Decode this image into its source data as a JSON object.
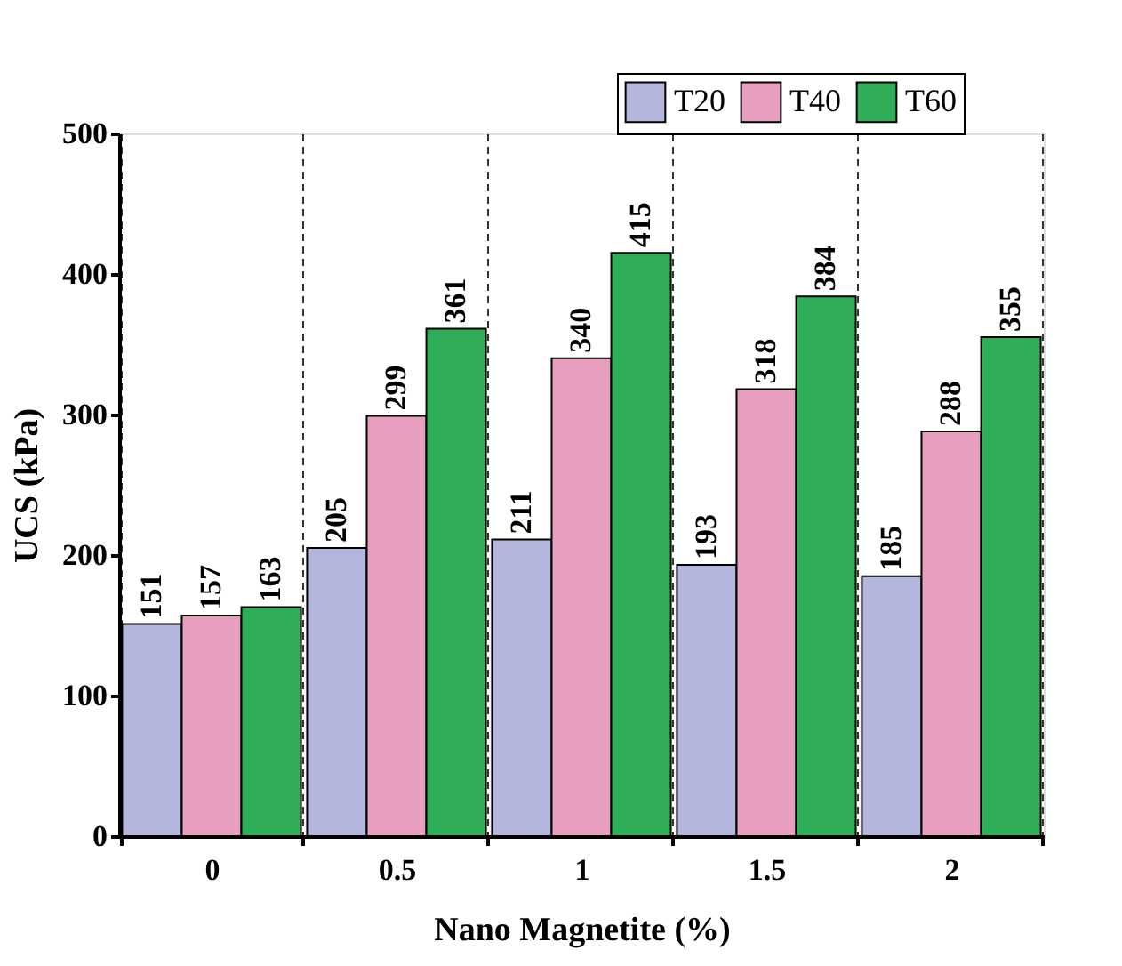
{
  "chart_data": {
    "type": "bar",
    "xlabel": "Nano Magnetite (%)",
    "ylabel": "UCS (kPa)",
    "categories": [
      "0",
      "0.5",
      "1",
      "1.5",
      "2"
    ],
    "series": [
      {
        "name": "T20",
        "color": "#b4b6dc",
        "values": [
          151,
          205,
          211,
          193,
          185
        ]
      },
      {
        "name": "T40",
        "color": "#e89ebf",
        "values": [
          157,
          299,
          340,
          318,
          288
        ]
      },
      {
        "name": "T60",
        "color": "#2fae57",
        "values": [
          163,
          361,
          415,
          384,
          355
        ]
      }
    ],
    "ylim": [
      0,
      500
    ],
    "yticks": [
      0,
      100,
      200,
      300,
      400,
      500
    ],
    "data_labels": true,
    "grid": "x",
    "legend": "top right"
  }
}
